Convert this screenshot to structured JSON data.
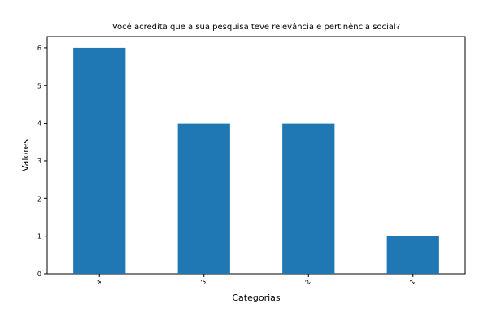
{
  "chart_data": {
    "type": "bar",
    "title": "Você acredita que a sua pesquisa teve relevância e pertinência social?",
    "xlabel": "Categorias",
    "ylabel": "Valores",
    "categories": [
      "4",
      "3",
      "2",
      "1"
    ],
    "values": [
      6,
      4,
      4,
      1
    ],
    "ylim": [
      0,
      6.3
    ],
    "yticks": [
      "0",
      "1",
      "2",
      "3",
      "4",
      "5",
      "6"
    ],
    "bar_color": "#1f77b4",
    "grid": false,
    "legend": "none"
  }
}
